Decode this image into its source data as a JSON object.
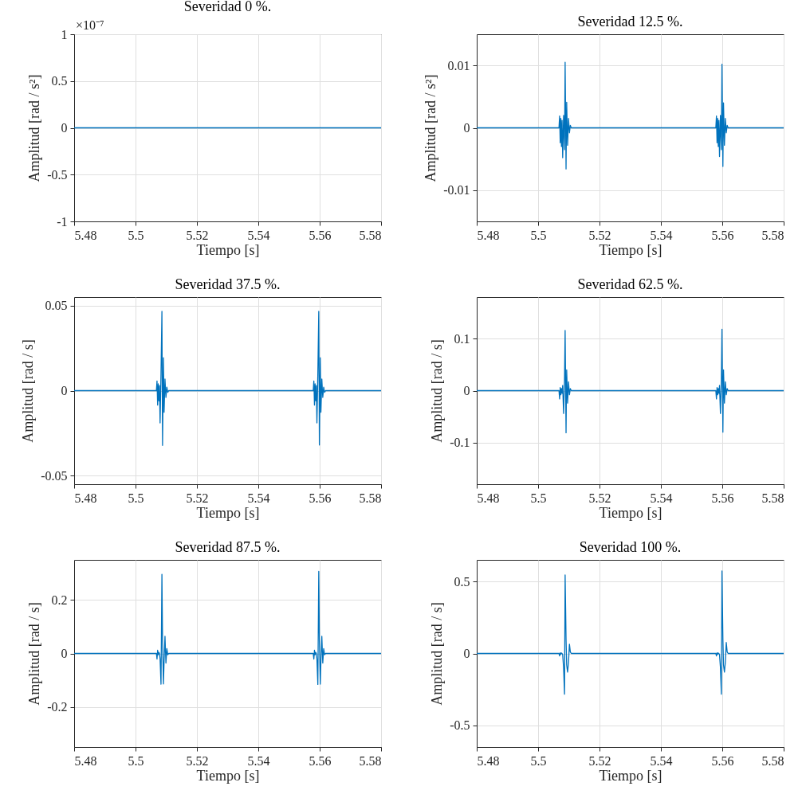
{
  "chart_data": [
    {
      "type": "line",
      "title": "Severidad 0 %.",
      "xlabel": "Tiempo [s]",
      "ylabel": "Amplitud [rad / s²]",
      "annotations": [
        "×10⁻⁷"
      ],
      "x": [
        5.48,
        5.58
      ],
      "series": [
        {
          "color": "#0072bd",
          "values": [
            0,
            0
          ]
        }
      ],
      "xlim": [
        5.48,
        5.58
      ],
      "xticks": [
        5.48,
        5.5,
        5.52,
        5.54,
        5.56,
        5.58
      ],
      "ylim": [
        -1,
        1
      ],
      "yticks": [
        -1,
        -0.5,
        0,
        0.5,
        1
      ],
      "grid": true
    },
    {
      "type": "line",
      "title": "Severidad 12.5 %.",
      "xlabel": "Tiempo [s]",
      "ylabel": "Amplitud [rad / s²]",
      "x": [
        5.48,
        5.5068,
        5.507,
        5.5072,
        5.5074,
        5.5076,
        5.5078,
        5.508,
        5.5083,
        5.5086,
        5.5088,
        5.5091,
        5.5093,
        5.5096,
        5.5099,
        5.5102,
        5.5105,
        5.5108,
        5.5579,
        5.5581,
        5.5583,
        5.5585,
        5.5587,
        5.5589,
        5.5591,
        5.5594,
        5.5597,
        5.5599,
        5.5602,
        5.5604,
        5.5607,
        5.561,
        5.5613,
        5.5616,
        5.5619,
        5.58
      ],
      "series": [
        {
          "color": "#0072bd",
          "values": [
            0,
            0,
            0.0019,
            -0.0024,
            0.0015,
            -0.003,
            0.0012,
            -0.0048,
            0.002,
            -0.0035,
            0.0105,
            -0.0066,
            0.0041,
            -0.0028,
            0.0015,
            -0.0008,
            0.0004,
            0,
            0,
            0.0019,
            -0.0024,
            0.0015,
            -0.003,
            0.0012,
            -0.0046,
            0.002,
            -0.0035,
            0.0102,
            -0.0062,
            0.004,
            -0.0028,
            0.0015,
            -0.0008,
            0.0004,
            0,
            0
          ]
        }
      ],
      "xlim": [
        5.48,
        5.58
      ],
      "xticks": [
        5.48,
        5.5,
        5.52,
        5.54,
        5.56,
        5.58
      ],
      "ylim": [
        -0.015,
        0.015
      ],
      "yticks": [
        -0.01,
        0,
        0.01
      ],
      "grid": true
    },
    {
      "type": "line",
      "title": "Severidad 37.5 %.",
      "xlabel": "Tiempo [s]",
      "ylabel": "Amplitud [rad / s]",
      "x": [
        5.48,
        5.5068,
        5.507,
        5.5072,
        5.5074,
        5.5076,
        5.5078,
        5.508,
        5.5083,
        5.5086,
        5.5088,
        5.5091,
        5.5093,
        5.5096,
        5.5099,
        5.5102,
        5.5105,
        5.5108,
        5.5579,
        5.5581,
        5.5583,
        5.5585,
        5.5587,
        5.5589,
        5.5591,
        5.5594,
        5.5597,
        5.5599,
        5.5602,
        5.5604,
        5.5607,
        5.561,
        5.5613,
        5.5616,
        5.5619,
        5.58
      ],
      "series": [
        {
          "color": "#0072bd",
          "values": [
            0,
            0,
            0.0057,
            -0.0085,
            0.004,
            -0.006,
            0.003,
            -0.019,
            0.01,
            0.0466,
            -0.0322,
            0.0193,
            -0.0127,
            0.0068,
            -0.004,
            0.002,
            -0.001,
            0,
            0,
            0.0057,
            -0.0085,
            0.004,
            -0.006,
            0.003,
            -0.019,
            0.01,
            0.0466,
            -0.032,
            0.0193,
            -0.0127,
            0.0068,
            -0.004,
            0.002,
            -0.001,
            0,
            0
          ]
        }
      ],
      "xlim": [
        5.48,
        5.58
      ],
      "xticks": [
        5.48,
        5.5,
        5.52,
        5.54,
        5.56,
        5.58
      ],
      "ylim": [
        -0.055,
        0.055
      ],
      "yticks": [
        -0.05,
        0,
        0.05
      ],
      "grid": true
    },
    {
      "type": "line",
      "title": "Severidad 62.5 %.",
      "xlabel": "Tiempo [s]",
      "ylabel": "Amplitud [rad / s]",
      "x": [
        5.48,
        5.5068,
        5.507,
        5.5072,
        5.5074,
        5.5076,
        5.5078,
        5.508,
        5.5083,
        5.5086,
        5.5088,
        5.5091,
        5.5093,
        5.5096,
        5.5099,
        5.5102,
        5.5105,
        5.5108,
        5.5579,
        5.5581,
        5.5583,
        5.5585,
        5.5587,
        5.5589,
        5.5591,
        5.5594,
        5.5597,
        5.5599,
        5.5602,
        5.5604,
        5.5607,
        5.561,
        5.5613,
        5.5616,
        5.5619,
        5.58
      ],
      "series": [
        {
          "color": "#0072bd",
          "values": [
            0,
            0,
            -0.016,
            0.006,
            -0.008,
            0.004,
            -0.005,
            0.01,
            -0.044,
            0.02,
            0.116,
            -0.081,
            0.04,
            -0.024,
            0.017,
            -0.008,
            0.004,
            0,
            0,
            -0.016,
            0.006,
            -0.008,
            0.004,
            -0.005,
            0.01,
            -0.044,
            0.02,
            0.118,
            -0.08,
            0.04,
            -0.024,
            0.017,
            -0.008,
            0.004,
            0,
            0
          ]
        }
      ],
      "xlim": [
        5.48,
        5.58
      ],
      "xticks": [
        5.48,
        5.5,
        5.52,
        5.54,
        5.56,
        5.58
      ],
      "ylim": [
        -0.18,
        0.18
      ],
      "yticks": [
        -0.1,
        0,
        0.1
      ],
      "grid": true
    },
    {
      "type": "line",
      "title": "Severidad 87.5 %.",
      "xlabel": "Tiempo [s]",
      "ylabel": "Amplitud [rad / s]",
      "x": [
        5.48,
        5.5068,
        5.507,
        5.5072,
        5.5074,
        5.5076,
        5.5078,
        5.508,
        5.5083,
        5.5086,
        5.5088,
        5.5091,
        5.5093,
        5.5096,
        5.5099,
        5.5102,
        5.5105,
        5.5108,
        5.5579,
        5.5581,
        5.5583,
        5.5585,
        5.5587,
        5.5589,
        5.5591,
        5.5594,
        5.5597,
        5.5599,
        5.5602,
        5.5604,
        5.5607,
        5.561,
        5.5613,
        5.5616,
        5.5619,
        5.58
      ],
      "series": [
        {
          "color": "#0072bd",
          "values": [
            0,
            0,
            -0.021,
            0.012,
            -0.005,
            0.004,
            0,
            -0.02,
            -0.115,
            0.296,
            0.05,
            -0.114,
            -0.03,
            0.064,
            -0.036,
            0.018,
            -0.005,
            0,
            0,
            -0.021,
            0.012,
            -0.005,
            0.004,
            0,
            -0.02,
            -0.116,
            0.307,
            0.05,
            -0.115,
            -0.03,
            0.064,
            -0.036,
            0.018,
            -0.005,
            0,
            0
          ]
        }
      ],
      "xlim": [
        5.48,
        5.58
      ],
      "xticks": [
        5.48,
        5.5,
        5.52,
        5.54,
        5.56,
        5.58
      ],
      "ylim": [
        -0.35,
        0.35
      ],
      "yticks": [
        -0.2,
        0,
        0.2
      ],
      "grid": true
    },
    {
      "type": "line",
      "title": "Severidad 100 %.",
      "xlabel": "Tiempo [s]",
      "ylabel": "Amplitud [rad / s]",
      "x": [
        5.48,
        5.5068,
        5.507,
        5.5072,
        5.5074,
        5.5076,
        5.5078,
        5.508,
        5.5083,
        5.5086,
        5.5088,
        5.5091,
        5.5093,
        5.5096,
        5.5099,
        5.5102,
        5.5105,
        5.5108,
        5.5579,
        5.5581,
        5.5583,
        5.5585,
        5.5587,
        5.5589,
        5.5591,
        5.5594,
        5.5597,
        5.5599,
        5.5602,
        5.5604,
        5.5607,
        5.561,
        5.5613,
        5.5616,
        5.5619,
        5.58
      ],
      "series": [
        {
          "color": "#0072bd",
          "values": [
            0,
            0,
            -0.017,
            0.005,
            -0.006,
            0.003,
            0,
            -0.01,
            -0.1,
            -0.283,
            0.545,
            0.1,
            -0.08,
            -0.129,
            -0.06,
            0.064,
            0.01,
            0,
            0,
            -0.017,
            0.005,
            -0.006,
            0.003,
            0,
            -0.01,
            -0.1,
            -0.283,
            0.573,
            0.1,
            -0.08,
            -0.129,
            -0.06,
            0.076,
            0.01,
            0,
            0
          ]
        }
      ],
      "xlim": [
        5.48,
        5.58
      ],
      "xticks": [
        5.48,
        5.5,
        5.52,
        5.54,
        5.56,
        5.58
      ],
      "ylim": [
        -0.65,
        0.65
      ],
      "yticks": [
        -0.5,
        0,
        0.5
      ],
      "grid": true
    }
  ]
}
